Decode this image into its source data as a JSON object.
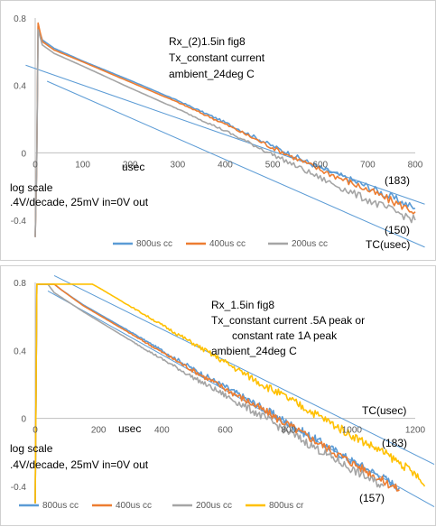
{
  "chart_data": [
    {
      "type": "line",
      "xlim": [
        0,
        800
      ],
      "ylim": [
        -0.4,
        0.8
      ],
      "x_ticks": [
        0,
        100,
        200,
        300,
        400,
        500,
        600,
        700,
        800
      ],
      "x_tick_labels": [
        "0",
        "100",
        "200",
        "300",
        "400",
        "500",
        "600",
        "700",
        "800"
      ],
      "y_ticks": [
        -0.4,
        0,
        0.4,
        0.8
      ],
      "y_tick_labels": [
        "-0.4",
        "0",
        "0.4",
        "0.8"
      ],
      "x_unit_label": "usec",
      "annotations": {
        "title_lines": [
          "Rx_(2)1.5in fig8",
          "Tx_constant current",
          "ambient_24deg C"
        ],
        "scale_lines": [
          "log scale",
          ".4V/decade, 25mV in=0V out"
        ],
        "tc_label": "TC(usec)",
        "fit_labels": [
          "(183)",
          "(150)"
        ]
      },
      "fit_lines": [
        {
          "label": "(183)",
          "x": [
            -20,
            820
          ],
          "y": [
            0.52,
            -0.305
          ],
          "color": "#5b9bd5"
        },
        {
          "label": "(150)",
          "x": [
            25,
            820
          ],
          "y": [
            0.425,
            -0.56
          ],
          "color": "#5b9bd5"
        }
      ],
      "series": [
        {
          "name": "800us cc",
          "color": "#5b9bd5",
          "pts": [
            [
              0,
              -0.5
            ],
            [
              3,
              -0.1
            ],
            [
              6,
              0.75
            ],
            [
              15,
              0.67
            ],
            [
              40,
              0.62
            ],
            [
              100,
              0.545
            ],
            [
              200,
              0.43
            ],
            [
              300,
              0.31
            ],
            [
              400,
              0.18
            ],
            [
              500,
              0.04
            ],
            [
              600,
              -0.09
            ],
            [
              700,
              -0.2
            ],
            [
              800,
              -0.33
            ]
          ]
        },
        {
          "name": "400us cc",
          "color": "#ed7d31",
          "pts": [
            [
              0,
              -0.5
            ],
            [
              3,
              -0.1
            ],
            [
              6,
              0.77
            ],
            [
              15,
              0.66
            ],
            [
              40,
              0.61
            ],
            [
              100,
              0.54
            ],
            [
              200,
              0.42
            ],
            [
              300,
              0.3
            ],
            [
              400,
              0.17
            ],
            [
              500,
              0.03
            ],
            [
              600,
              -0.1
            ],
            [
              700,
              -0.22
            ],
            [
              800,
              -0.35
            ]
          ]
        },
        {
          "name": "200us cc",
          "color": "#a5a5a5",
          "pts": [
            [
              0,
              -0.5
            ],
            [
              3,
              -0.1
            ],
            [
              6,
              0.73
            ],
            [
              15,
              0.64
            ],
            [
              40,
              0.59
            ],
            [
              100,
              0.515
            ],
            [
              200,
              0.385
            ],
            [
              300,
              0.26
            ],
            [
              400,
              0.13
            ],
            [
              500,
              -0.01
            ],
            [
              600,
              -0.15
            ],
            [
              700,
              -0.28
            ],
            [
              800,
              -0.4
            ]
          ]
        }
      ]
    },
    {
      "type": "line",
      "xlim": [
        0,
        1200
      ],
      "ylim": [
        -0.4,
        0.8
      ],
      "x_ticks": [
        0,
        200,
        400,
        600,
        800,
        1000,
        1200
      ],
      "x_tick_labels": [
        "0",
        "200",
        "400",
        "600",
        "800",
        "1000",
        "1200"
      ],
      "y_ticks": [
        -0.4,
        0,
        0.4,
        0.8
      ],
      "y_tick_labels": [
        "-0.4",
        "0",
        "0.4",
        "0.8"
      ],
      "x_unit_label": "usec",
      "annotations": {
        "title_lines": [
          "Rx_1.5in fig8",
          "Tx_constant current .5A peak or",
          "constant rate 1A peak",
          "ambient_24deg C"
        ],
        "scale_lines": [
          "log scale",
          ".4V/decade, 25mV in=0V out"
        ],
        "tc_label": "TC(usec)",
        "fit_labels": [
          "(183)",
          "(157)"
        ]
      },
      "fit_lines": [
        {
          "label": "(183)",
          "x": [
            60,
            1260
          ],
          "y": [
            0.84,
            -0.27
          ],
          "color": "#5b9bd5"
        },
        {
          "label": "(157)",
          "x": [
            40,
            1260
          ],
          "y": [
            0.75,
            -0.52
          ],
          "color": "#5b9bd5"
        }
      ],
      "series": [
        {
          "name": "800us cc",
          "color": "#5b9bd5",
          "pts": [
            [
              0,
              -0.5
            ],
            [
              5,
              0.79
            ],
            [
              60,
              0.79
            ],
            [
              80,
              0.76
            ],
            [
              150,
              0.67
            ],
            [
              300,
              0.51
            ],
            [
              500,
              0.29
            ],
            [
              700,
              0.08
            ],
            [
              800,
              -0.03
            ],
            [
              900,
              -0.14
            ],
            [
              1000,
              -0.25
            ],
            [
              1100,
              -0.35
            ],
            [
              1150,
              -0.41
            ]
          ]
        },
        {
          "name": "400us cc",
          "color": "#ed7d31",
          "pts": [
            [
              0,
              -0.5
            ],
            [
              5,
              0.79
            ],
            [
              60,
              0.79
            ],
            [
              80,
              0.76
            ],
            [
              150,
              0.665
            ],
            [
              300,
              0.5
            ],
            [
              500,
              0.28
            ],
            [
              700,
              0.07
            ],
            [
              800,
              -0.04
            ],
            [
              900,
              -0.15
            ],
            [
              1000,
              -0.26
            ],
            [
              1100,
              -0.37
            ],
            [
              1150,
              -0.42
            ]
          ]
        },
        {
          "name": "200us cc",
          "color": "#a5a5a5",
          "pts": [
            [
              0,
              -0.5
            ],
            [
              5,
              0.79
            ],
            [
              40,
              0.79
            ],
            [
              60,
              0.74
            ],
            [
              150,
              0.63
            ],
            [
              300,
              0.46
            ],
            [
              500,
              0.24
            ],
            [
              700,
              0.03
            ],
            [
              800,
              -0.08
            ],
            [
              900,
              -0.19
            ],
            [
              1000,
              -0.3
            ],
            [
              1100,
              -0.4
            ]
          ]
        },
        {
          "name": "800us cr",
          "color": "#ffc000",
          "pts": [
            [
              0,
              -0.5
            ],
            [
              5,
              0.79
            ],
            [
              180,
              0.79
            ],
            [
              200,
              0.77
            ],
            [
              300,
              0.66
            ],
            [
              500,
              0.44
            ],
            [
              700,
              0.22
            ],
            [
              900,
              0.01
            ],
            [
              1000,
              -0.1
            ],
            [
              1100,
              -0.2
            ],
            [
              1150,
              -0.26
            ],
            [
              1200,
              -0.33
            ],
            [
              1230,
              -0.4
            ]
          ]
        }
      ]
    }
  ]
}
